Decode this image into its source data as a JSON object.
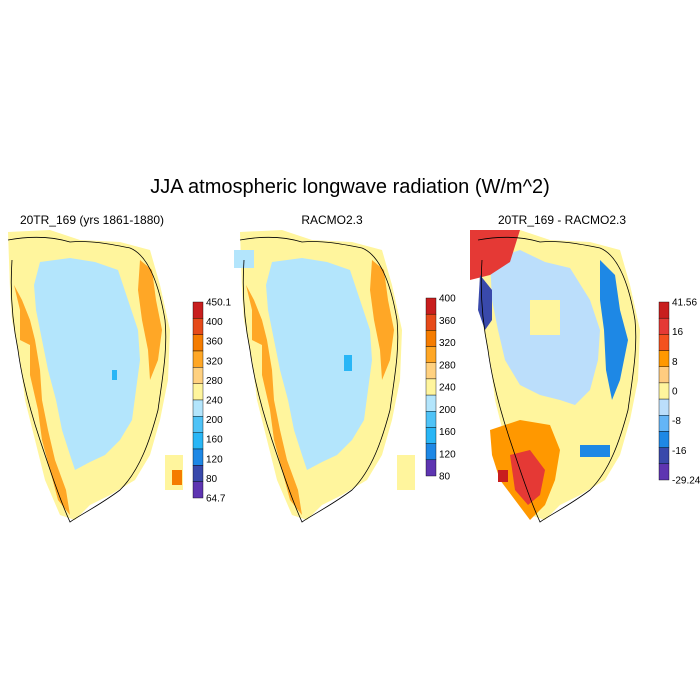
{
  "title": "JJA atmospheric longwave radiation (W/m^2)",
  "panels": [
    {
      "title": "20TR_169 (yrs 1861-1880)",
      "colorbar": {
        "labels": [
          "450.1",
          "400",
          "360",
          "320",
          "280",
          "240",
          "200",
          "160",
          "120",
          "80",
          "64.7"
        ],
        "colors": [
          "#c81e1e",
          "#e64a19",
          "#f57c00",
          "#ffa726",
          "#ffd180",
          "#fff59d",
          "#b3e5fc",
          "#4fc3f7",
          "#29b6f6",
          "#1e88e5",
          "#3949ab",
          "#5e35b1"
        ]
      }
    },
    {
      "title": "RACMO2.3",
      "colorbar": {
        "labels": [
          "400",
          "360",
          "320",
          "280",
          "240",
          "200",
          "160",
          "120",
          "80"
        ],
        "colors": [
          "#c81e1e",
          "#e64a19",
          "#f57c00",
          "#ffa726",
          "#ffd180",
          "#fff59d",
          "#b3e5fc",
          "#4fc3f7",
          "#29b6f6",
          "#1e88e5",
          "#5e35b1"
        ]
      }
    },
    {
      "title": "20TR_169 - RACMO2.3",
      "colorbar": {
        "labels": [
          "41.56",
          "16",
          "8",
          "0",
          "-8",
          "-16",
          "-29.24"
        ],
        "colors": [
          "#c81e1e",
          "#e53935",
          "#f4511e",
          "#ff9800",
          "#ffcc80",
          "#fff59d",
          "#bbdefb",
          "#64b5f6",
          "#1e88e5",
          "#3949ab",
          "#5e35b1"
        ]
      }
    }
  ]
}
